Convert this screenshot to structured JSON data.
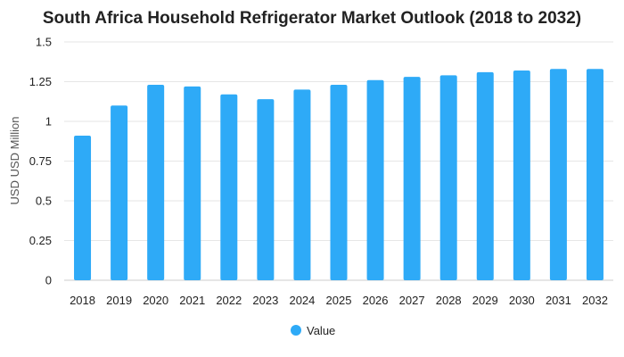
{
  "chart_data": {
    "type": "bar",
    "title": "South Africa Household Refrigerator Market Outlook (2018 to 2032)",
    "xlabel": "",
    "ylabel": "USD USD Million",
    "categories": [
      "2018",
      "2019",
      "2020",
      "2021",
      "2022",
      "2023",
      "2024",
      "2025",
      "2026",
      "2027",
      "2028",
      "2029",
      "2030",
      "2031",
      "2032"
    ],
    "series": [
      {
        "name": "Value",
        "color": "#2eaaf7",
        "values": [
          0.91,
          1.1,
          1.23,
          1.22,
          1.17,
          1.14,
          1.2,
          1.23,
          1.26,
          1.28,
          1.29,
          1.31,
          1.32,
          1.33,
          1.33
        ]
      }
    ],
    "ylim": [
      0,
      1.5
    ],
    "yticks": [
      "0",
      "0.25",
      "0.5",
      "0.75",
      "1",
      "1.25",
      "1.5"
    ],
    "ytick_values": [
      0,
      0.25,
      0.5,
      0.75,
      1,
      1.25,
      1.5
    ],
    "grid": true,
    "legend_position": "bottom-center"
  }
}
